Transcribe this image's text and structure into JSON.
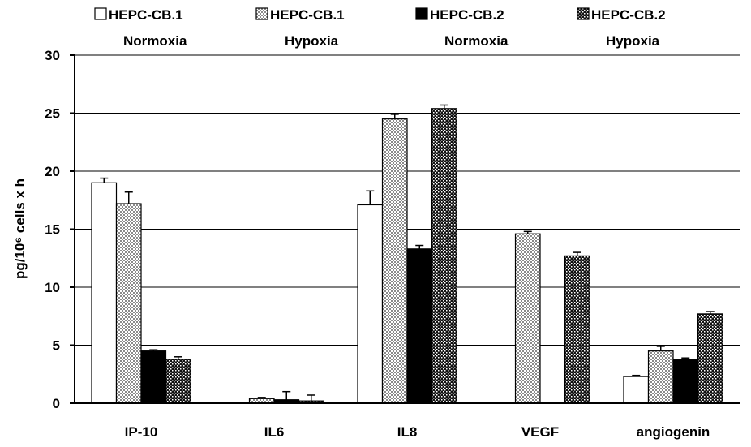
{
  "chart_data": {
    "type": "bar",
    "title": "",
    "xlabel": "",
    "ylabel": "pg/10⁶ cells x h",
    "ylim": [
      0,
      30
    ],
    "yticks": [
      0,
      5,
      10,
      15,
      20,
      25,
      30
    ],
    "grid": true,
    "legend_position": "top",
    "categories": [
      "IP-10",
      "IL6",
      "IL8",
      "VEGF",
      "angiogenin"
    ],
    "series": [
      {
        "name": "HEPC-CB.1 Normoxia",
        "line1": "HEPC-CB.1",
        "line2": "Normoxia",
        "pattern": "white",
        "values": [
          19.0,
          0.0,
          17.1,
          0.0,
          2.3
        ],
        "errors": [
          0.4,
          0.0,
          1.2,
          0.0,
          0.1
        ]
      },
      {
        "name": "HEPC-CB.1 Hypoxia",
        "line1": "HEPC-CB.1",
        "line2": "Hypoxia",
        "pattern": "light-dots",
        "values": [
          17.2,
          0.4,
          24.5,
          14.6,
          4.5
        ],
        "errors": [
          1.0,
          0.1,
          0.4,
          0.2,
          0.4
        ]
      },
      {
        "name": "HEPC-CB.2 Normoxia",
        "line1": "HEPC-CB.2",
        "line2": "Normoxia",
        "pattern": "black",
        "values": [
          4.5,
          0.3,
          13.3,
          0.0,
          3.8
        ],
        "errors": [
          0.1,
          0.7,
          0.3,
          0.0,
          0.1
        ]
      },
      {
        "name": "HEPC-CB.2 Hypoxia",
        "line1": "HEPC-CB.2",
        "line2": "Hypoxia",
        "pattern": "dark-check",
        "values": [
          3.8,
          0.2,
          25.4,
          12.7,
          7.7
        ],
        "errors": [
          0.2,
          0.5,
          0.3,
          0.3,
          0.2
        ]
      }
    ]
  }
}
